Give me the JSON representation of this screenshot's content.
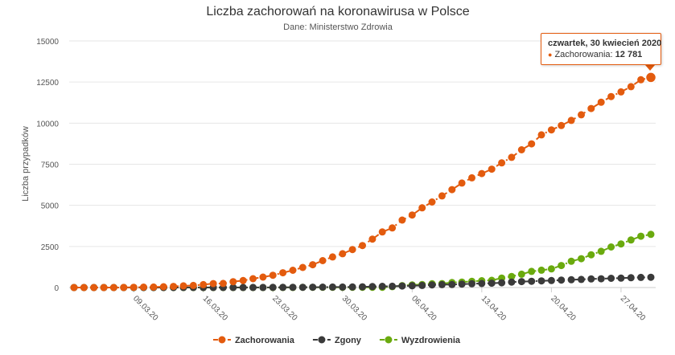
{
  "chart_data": {
    "type": "line",
    "title": "Liczba zachorowań na koronawirusa w Polsce",
    "subtitle": "Dane: Ministerstwo Zdrowia",
    "ylabel": "Liczba przypadków",
    "xlabel": "",
    "ylim": [
      0,
      15000
    ],
    "yticks": [
      0,
      2500,
      5000,
      7500,
      10000,
      12500,
      15000
    ],
    "ytick_labels": [
      "0",
      "2500",
      "5000",
      "7500",
      "10000",
      "12500",
      "15000"
    ],
    "x_start": "2020-03-03",
    "x_end": "2020-04-30",
    "xtick_labels": [
      {
        "date": "2020-03-09",
        "label": "09.03.20"
      },
      {
        "date": "2020-03-16",
        "label": "16.03.20"
      },
      {
        "date": "2020-03-23",
        "label": "23.03.20"
      },
      {
        "date": "2020-03-30",
        "label": "30.03.20"
      },
      {
        "date": "2020-04-06",
        "label": "06.04.20"
      },
      {
        "date": "2020-04-13",
        "label": "13.04.20"
      },
      {
        "date": "2020-04-20",
        "label": "20.04.20"
      },
      {
        "date": "2020-04-27",
        "label": "27.04.20"
      }
    ],
    "legend_position": "bottom-center",
    "grid": "horizontal",
    "series": [
      {
        "name": "Zachorowania",
        "color": "#e35b0e",
        "values": [
          0,
          0,
          1,
          1,
          1,
          5,
          16,
          22,
          31,
          49,
          68,
          103,
          125,
          177,
          238,
          251,
          355,
          425,
          536,
          634,
          749,
          901,
          1051,
          1221,
          1389,
          1638,
          1862,
          2055,
          2311,
          2554,
          2946,
          3383,
          3627,
          4102,
          4413,
          4848,
          5205,
          5575,
          5955,
          6356,
          6674,
          6934,
          7202,
          7582,
          7918,
          8379,
          8742,
          9287,
          9593,
          9856,
          10169,
          10511,
          10892,
          11273,
          11617,
          11902,
          12218,
          12640,
          12781
        ]
      },
      {
        "name": "Zgony",
        "color": "#3a3a3a",
        "values": [
          0,
          0,
          0,
          0,
          0,
          0,
          0,
          0,
          0,
          1,
          2,
          3,
          3,
          4,
          5,
          5,
          5,
          5,
          7,
          7,
          8,
          10,
          14,
          16,
          18,
          23,
          27,
          31,
          33,
          43,
          57,
          71,
          79,
          94,
          107,
          129,
          159,
          174,
          181,
          208,
          232,
          245,
          263,
          286,
          332,
          360,
          379,
          404,
          426,
          454,
          476,
          494,
          524,
          535,
          562,
          572,
          596,
          618,
          624
        ]
      },
      {
        "name": "Wyzdrowienia",
        "color": "#6aaa0e",
        "values": [
          0,
          0,
          0,
          0,
          0,
          0,
          0,
          0,
          0,
          0,
          0,
          0,
          0,
          0,
          0,
          0,
          0,
          0,
          0,
          1,
          1,
          7,
          7,
          13,
          13,
          13,
          13,
          13,
          13,
          13,
          13,
          13,
          56,
          116,
          162,
          185,
          231,
          237,
          302,
          331,
          375,
          416,
          442,
          577,
          672,
          810,
          982,
          1055,
          1135,
          1341,
          1599,
          1754,
          1993,
          2205,
          2466,
          2655,
          2894,
          3120,
          3236
        ]
      }
    ]
  },
  "tooltip": {
    "title": "czwartek, 30 kwiecień 2020",
    "series_label": "Zachorowania:",
    "value": "12 781"
  }
}
